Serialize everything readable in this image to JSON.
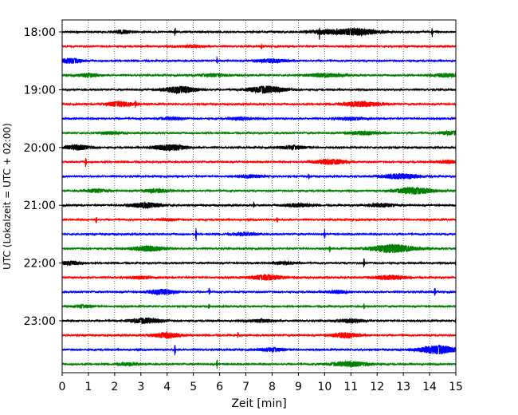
{
  "chart_data": {
    "type": "line",
    "title": "",
    "xlabel": "Zeit  [min]",
    "ylabel": "UTC (Lokalzeit = UTC + 02:00)",
    "xlim": [
      0,
      15
    ],
    "x_ticks": [
      0,
      1,
      2,
      3,
      4,
      5,
      6,
      7,
      8,
      9,
      10,
      11,
      12,
      13,
      14,
      15
    ],
    "x_tick_labels": [
      "0",
      "1",
      "2",
      "3",
      "4",
      "5",
      "6",
      "7",
      "8",
      "9",
      "10",
      "11",
      "12",
      "13",
      "14",
      "15"
    ],
    "grid": "vertical dotted",
    "trace_colors": [
      "#000000",
      "#ff0000",
      "#0000ff",
      "#008000"
    ],
    "y_tick_labels": [
      "18:00",
      "19:00",
      "20:00",
      "21:00",
      "22:00",
      "23:00"
    ],
    "y_tick_trace_index": [
      0,
      4,
      8,
      12,
      16,
      20
    ],
    "traces": [
      {
        "start": "18:00",
        "spikes": [
          [
            4.3,
            6
          ],
          [
            9.8,
            7
          ],
          [
            14.1,
            6
          ]
        ],
        "bursts": [
          [
            2.3,
            0.3,
            2
          ],
          [
            10.0,
            0.6,
            2
          ],
          [
            11.2,
            0.8,
            4
          ]
        ]
      },
      {
        "start": "18:15",
        "spikes": [
          [
            7.6,
            3
          ]
        ],
        "bursts": [
          [
            5.0,
            0.5,
            1
          ]
        ]
      },
      {
        "start": "18:30",
        "spikes": [
          [
            5.9,
            5
          ]
        ],
        "bursts": [
          [
            0.3,
            0.4,
            3
          ],
          [
            8.0,
            0.6,
            2
          ]
        ]
      },
      {
        "start": "18:45",
        "spikes": [],
        "bursts": [
          [
            1.0,
            0.4,
            2
          ],
          [
            5.8,
            0.6,
            1.5
          ],
          [
            10.0,
            0.7,
            2
          ],
          [
            14.6,
            0.5,
            2
          ]
        ]
      },
      {
        "start": "19:00",
        "spikes": [],
        "bursts": [
          [
            4.5,
            0.6,
            4
          ],
          [
            7.8,
            0.7,
            4
          ]
        ]
      },
      {
        "start": "19:15",
        "spikes": [
          [
            2.8,
            5
          ]
        ],
        "bursts": [
          [
            2.2,
            0.5,
            3
          ],
          [
            11.4,
            0.7,
            3
          ]
        ]
      },
      {
        "start": "19:30",
        "spikes": [],
        "bursts": [
          [
            4.2,
            0.4,
            1.5
          ],
          [
            6.8,
            0.4,
            1.5
          ],
          [
            11.0,
            0.5,
            1.5
          ]
        ]
      },
      {
        "start": "19:45",
        "spikes": [],
        "bursts": [
          [
            1.8,
            0.4,
            1.5
          ],
          [
            11.5,
            0.6,
            2
          ],
          [
            14.8,
            0.4,
            2
          ]
        ]
      },
      {
        "start": "20:00",
        "spikes": [],
        "bursts": [
          [
            0.6,
            0.5,
            3
          ],
          [
            4.1,
            0.6,
            3.5
          ],
          [
            8.8,
            0.5,
            2
          ]
        ]
      },
      {
        "start": "20:15",
        "spikes": [
          [
            0.9,
            7
          ]
        ],
        "bursts": [
          [
            10.2,
            0.6,
            3
          ],
          [
            14.7,
            0.4,
            1.5
          ]
        ]
      },
      {
        "start": "20:30",
        "spikes": [
          [
            9.4,
            4
          ]
        ],
        "bursts": [
          [
            7.2,
            0.5,
            1.5
          ],
          [
            12.9,
            0.7,
            3
          ]
        ]
      },
      {
        "start": "20:45",
        "spikes": [],
        "bursts": [
          [
            1.3,
            0.4,
            2
          ],
          [
            3.6,
            0.5,
            2
          ],
          [
            13.4,
            0.7,
            4
          ]
        ]
      },
      {
        "start": "21:00",
        "spikes": [
          [
            7.3,
            3
          ]
        ],
        "bursts": [
          [
            3.2,
            0.6,
            3
          ],
          [
            9.0,
            0.5,
            2
          ],
          [
            12.2,
            0.5,
            2
          ]
        ]
      },
      {
        "start": "21:15",
        "spikes": [
          [
            1.3,
            5
          ],
          [
            8.2,
            3
          ]
        ],
        "bursts": [
          [
            4.0,
            0.4,
            1
          ]
        ]
      },
      {
        "start": "21:30",
        "spikes": [
          [
            5.1,
            9
          ],
          [
            10.0,
            6
          ]
        ],
        "bursts": [
          [
            7.0,
            0.5,
            1.5
          ]
        ]
      },
      {
        "start": "21:45",
        "spikes": [
          [
            10.2,
            4
          ]
        ],
        "bursts": [
          [
            3.3,
            0.6,
            3
          ],
          [
            12.6,
            0.8,
            5
          ]
        ]
      },
      {
        "start": "22:00",
        "spikes": [
          [
            11.5,
            6
          ],
          [
            15.0,
            5
          ]
        ],
        "bursts": [
          [
            0.3,
            0.4,
            2
          ],
          [
            8.5,
            0.5,
            1.5
          ]
        ]
      },
      {
        "start": "22:15",
        "spikes": [],
        "bursts": [
          [
            7.8,
            0.6,
            3
          ],
          [
            12.5,
            0.6,
            2.5
          ],
          [
            3.0,
            0.4,
            1.5
          ]
        ]
      },
      {
        "start": "22:30",
        "spikes": [
          [
            5.6,
            5
          ],
          [
            14.2,
            6
          ]
        ],
        "bursts": [
          [
            3.8,
            0.5,
            3
          ],
          [
            10.5,
            0.4,
            1.5
          ]
        ]
      },
      {
        "start": "22:45",
        "spikes": [
          [
            5.6,
            3
          ],
          [
            11.5,
            3
          ]
        ],
        "bursts": [
          [
            0.8,
            0.4,
            1.5
          ]
        ]
      },
      {
        "start": "23:00",
        "spikes": [
          [
            15.0,
            4
          ]
        ],
        "bursts": [
          [
            3.2,
            0.6,
            3
          ],
          [
            7.6,
            0.5,
            1.5
          ],
          [
            11.0,
            0.5,
            2
          ]
        ]
      },
      {
        "start": "23:15",
        "spikes": [
          [
            6.7,
            4
          ]
        ],
        "bursts": [
          [
            4.0,
            0.5,
            3
          ],
          [
            10.8,
            0.5,
            3
          ]
        ]
      },
      {
        "start": "23:30",
        "spikes": [
          [
            4.3,
            8
          ]
        ],
        "bursts": [
          [
            8.0,
            0.5,
            2
          ],
          [
            14.3,
            0.7,
            5
          ]
        ]
      },
      {
        "start": "23:45",
        "spikes": [
          [
            5.9,
            6
          ]
        ],
        "bursts": [
          [
            11.0,
            0.7,
            3
          ],
          [
            2.5,
            0.4,
            1.5
          ]
        ]
      }
    ]
  }
}
